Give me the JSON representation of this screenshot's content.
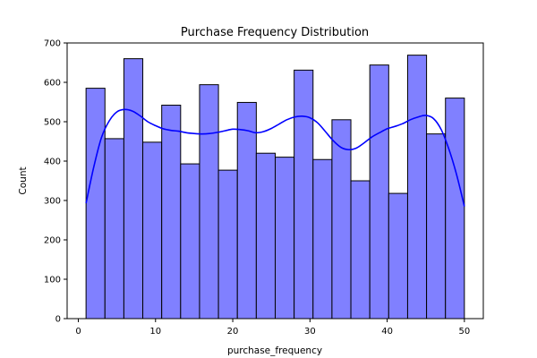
{
  "chart_data": {
    "type": "bar",
    "title": "Purchase Frequency Distribution",
    "xlabel": "purchase_frequency",
    "ylabel": "Count",
    "xlim": [
      -1.45,
      52.45
    ],
    "ylim": [
      0,
      700
    ],
    "xticks": [
      0,
      10,
      20,
      30,
      40,
      50
    ],
    "yticks": [
      0,
      100,
      200,
      300,
      400,
      500,
      600,
      700
    ],
    "bin_edges": [
      1,
      3.45,
      5.9,
      8.35,
      10.8,
      13.25,
      15.7,
      18.15,
      20.6,
      23.05,
      25.5,
      27.95,
      30.4,
      32.85,
      35.3,
      37.75,
      40.2,
      42.65,
      45.1,
      47.55,
      50
    ],
    "values": [
      585,
      457,
      660,
      448,
      542,
      393,
      594,
      377,
      549,
      420,
      410,
      631,
      404,
      505,
      350,
      644,
      318,
      669,
      469,
      560
    ],
    "kde": {
      "x": [
        1,
        2,
        3,
        4,
        5,
        6,
        7,
        8,
        9,
        10,
        11,
        12,
        13,
        14,
        15,
        16,
        17,
        18,
        19,
        20,
        21,
        22,
        23,
        24,
        25,
        26,
        27,
        28,
        29,
        30,
        31,
        32,
        33,
        34,
        35,
        36,
        37,
        38,
        39,
        40,
        41,
        42,
        43,
        44,
        45,
        46,
        47,
        48,
        49,
        50
      ],
      "y": [
        293,
        385,
        460,
        502,
        525,
        531,
        527,
        515,
        500,
        490,
        482,
        478,
        476,
        472,
        470,
        469,
        470,
        473,
        477,
        481,
        480,
        477,
        472,
        475,
        483,
        494,
        505,
        512,
        514,
        510,
        497,
        475,
        452,
        435,
        429,
        433,
        446,
        461,
        472,
        482,
        488,
        495,
        505,
        512,
        516,
        508,
        480,
        430,
        365,
        285
      ]
    },
    "colors": {
      "bar_fill": "#8080ff",
      "bar_edge": "#000000",
      "kde_line": "#0000ff"
    },
    "grid": false,
    "legend": "none"
  }
}
